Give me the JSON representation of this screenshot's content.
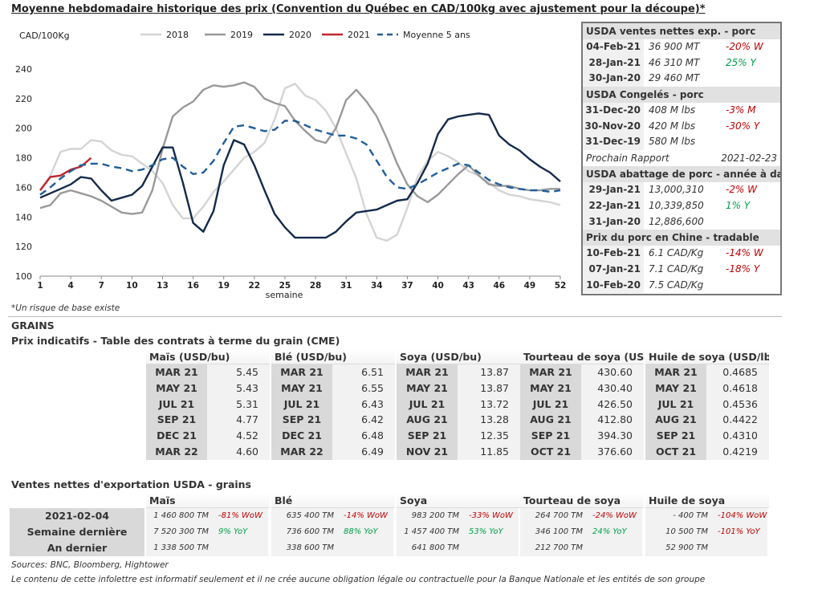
{
  "title": "Moyenne hebdomadaire historique des prix (Convention du Québec en CAD/100kg avec ajustement pour la découpe)*",
  "chart_data": {
    "type": "line",
    "ylabel": "CAD/100Kg",
    "xlabel": "semaine",
    "ylim": [
      100,
      240
    ],
    "xlim": [
      1,
      52
    ],
    "x_ticks": [
      1,
      4,
      7,
      10,
      13,
      16,
      19,
      22,
      25,
      28,
      31,
      34,
      37,
      40,
      43,
      46,
      49,
      52
    ],
    "y_ticks": [
      100,
      120,
      140,
      160,
      180,
      200,
      220,
      240
    ],
    "legend_position": "top",
    "series": [
      {
        "name": "2018",
        "color": "#d4d4d4",
        "dash": false,
        "values": [
          158,
          168,
          184,
          186,
          186,
          192,
          191,
          185,
          182,
          181,
          176,
          171,
          163,
          148,
          139,
          139,
          147,
          157,
          164,
          172,
          180,
          184,
          190,
          206,
          227,
          230,
          222,
          219,
          212,
          200,
          183,
          166,
          142,
          126,
          124,
          128,
          146,
          167,
          178,
          184,
          181,
          177,
          171,
          168,
          163,
          158,
          155,
          154,
          152,
          151,
          150,
          148
        ]
      },
      {
        "name": "2019",
        "color": "#999999",
        "dash": false,
        "values": [
          146,
          148,
          156,
          158,
          156,
          154,
          151,
          147,
          143,
          142,
          143,
          158,
          186,
          208,
          214,
          218,
          226,
          229,
          228,
          229,
          231,
          228,
          220,
          217,
          215,
          205,
          198,
          192,
          190,
          200,
          219,
          226,
          218,
          208,
          193,
          176,
          162,
          154,
          150,
          155,
          162,
          169,
          175,
          168,
          162,
          161,
          161,
          159,
          158,
          158,
          159,
          159
        ]
      },
      {
        "name": "2020",
        "color": "#14294b",
        "dash": false,
        "values": [
          153,
          156,
          159,
          162,
          167,
          166,
          158,
          151,
          153,
          155,
          161,
          174,
          187,
          187,
          163,
          136,
          130,
          144,
          175,
          192,
          189,
          175,
          158,
          142,
          133,
          126,
          126,
          126,
          126,
          130,
          137,
          143,
          144,
          145,
          148,
          151,
          152,
          163,
          176,
          196,
          206,
          208,
          209,
          210,
          209,
          195,
          189,
          185,
          179,
          174,
          170,
          164
        ]
      },
      {
        "name": "2021",
        "color": "#c0262d",
        "dash": false,
        "values": [
          158,
          167,
          168,
          172,
          174,
          180
        ]
      },
      {
        "name": "Moyenne 5 ans",
        "color": "#1f5d99",
        "dash": true,
        "values": [
          155,
          160,
          166,
          171,
          175,
          176,
          176,
          174,
          173,
          171,
          172,
          175,
          179,
          180,
          174,
          169,
          170,
          178,
          190,
          201,
          202,
          200,
          198,
          199,
          205,
          205,
          202,
          199,
          197,
          195,
          195,
          193,
          189,
          178,
          167,
          160,
          159,
          162,
          166,
          170,
          173,
          176,
          175,
          170,
          165,
          162,
          160,
          159,
          158,
          158,
          157,
          158
        ]
      }
    ]
  },
  "chart_note": "*Un risque de base existe",
  "usda": {
    "sections": [
      {
        "title": "USDA ventes nettes exp. - porc",
        "rows": [
          {
            "date": "04-Feb-21",
            "value": "36 900  MT",
            "change": "-20% W",
            "dir": "neg"
          },
          {
            "date": "28-Jan-21",
            "value": "46 310  MT",
            "change": "25% Y",
            "dir": "pos"
          },
          {
            "date": "30-Jan-20",
            "value": "29 460  MT",
            "change": "",
            "dir": ""
          }
        ]
      },
      {
        "title": "USDA Congelés - porc",
        "rows": [
          {
            "date": "31-Dec-20",
            "value": "408 M lbs",
            "change": "-3% M",
            "dir": "neg"
          },
          {
            "date": "30-Nov-20",
            "value": "420 M lbs",
            "change": "-30% Y",
            "dir": "neg"
          },
          {
            "date": "31-Dec-19",
            "value": "580 M lbs",
            "change": "",
            "dir": ""
          }
        ]
      },
      {
        "title": "USDA abattage de porc - année à date",
        "rows": [
          {
            "date": "29-Jan-21",
            "value": "13,000,310",
            "change": "-2% W",
            "dir": "neg"
          },
          {
            "date": "22-Jan-21",
            "value": "10,339,850",
            "change": "1% Y",
            "dir": "pos"
          },
          {
            "date": "31-Jan-20",
            "value": "12,886,600",
            "change": "",
            "dir": ""
          }
        ]
      },
      {
        "title": "Prix du porc en Chine - tradable",
        "rows": [
          {
            "date": "10-Feb-21",
            "value": "6.1 CAD/Kg",
            "change": "-14% W",
            "dir": "neg"
          },
          {
            "date": "07-Jan-21",
            "value": "7.1 CAD/Kg",
            "change": "-18% Y",
            "dir": "neg"
          },
          {
            "date": "10-Feb-20",
            "value": "7.5 CAD/Kg",
            "change": "",
            "dir": ""
          }
        ]
      }
    ],
    "next_report_label": "Prochain Rapport",
    "next_report_date": "2021-02-23"
  },
  "grains_label": "GRAINS",
  "futures_title": "Prix indicatifs - Table des contrats à terme du grain (CME)",
  "futures": [
    {
      "name": "Maïs (USD/bu)",
      "rows": [
        [
          "MAR 21",
          "5.45"
        ],
        [
          "MAY 21",
          "5.43"
        ],
        [
          "JUL 21",
          "5.31"
        ],
        [
          "SEP 21",
          "4.77"
        ],
        [
          "DEC 21",
          "4.52"
        ],
        [
          "MAR 22",
          "4.60"
        ]
      ]
    },
    {
      "name": "Blé (USD/bu)",
      "rows": [
        [
          "MAR 21",
          "6.51"
        ],
        [
          "MAY 21",
          "6.55"
        ],
        [
          "JUL 21",
          "6.43"
        ],
        [
          "SEP 21",
          "6.42"
        ],
        [
          "DEC 21",
          "6.48"
        ],
        [
          "MAR 22",
          "6.49"
        ]
      ]
    },
    {
      "name": "Soya (USD/bu)",
      "rows": [
        [
          "MAR 21",
          "13.87"
        ],
        [
          "MAY 21",
          "13.87"
        ],
        [
          "JUL 21",
          "13.72"
        ],
        [
          "AUG 21",
          "13.28"
        ],
        [
          "SEP 21",
          "12.35"
        ],
        [
          "NOV 21",
          "11.85"
        ]
      ]
    },
    {
      "name": "Tourteau de soya (USD/ST)",
      "rows": [
        [
          "MAR 21",
          "430.60"
        ],
        [
          "MAY 21",
          "430.40"
        ],
        [
          "JUL 21",
          "426.50"
        ],
        [
          "AUG 21",
          "412.80"
        ],
        [
          "SEP 21",
          "394.30"
        ],
        [
          "OCT 21",
          "376.60"
        ]
      ]
    },
    {
      "name": "Huile de soya (USD/lb)",
      "rows": [
        [
          "MAR 21",
          "0.4685"
        ],
        [
          "MAY 21",
          "0.4618"
        ],
        [
          "JUL 21",
          "0.4536"
        ],
        [
          "AUG 21",
          "0.4422"
        ],
        [
          "SEP 21",
          "0.4310"
        ],
        [
          "OCT 21",
          "0.4219"
        ]
      ]
    }
  ],
  "export_title": "Ventes nettes d'exportation USDA - grains",
  "export": {
    "row_labels": [
      "2021-02-04",
      "Semaine dernière",
      "An dernier"
    ],
    "columns": [
      {
        "name": "Maïs",
        "values": [
          "1 460 800 TM",
          "7 520 300 TM",
          "1 338 500 TM"
        ],
        "changes": [
          {
            "text": "-81% WoW",
            "dir": "neg"
          },
          {
            "text": "9% YoY",
            "dir": "pos"
          },
          {
            "text": "",
            "dir": ""
          }
        ]
      },
      {
        "name": "Blé",
        "values": [
          "635 400 TM",
          "736 600 TM",
          "338 600 TM"
        ],
        "changes": [
          {
            "text": "-14% WoW",
            "dir": "neg"
          },
          {
            "text": "88% YoY",
            "dir": "pos"
          },
          {
            "text": "",
            "dir": ""
          }
        ]
      },
      {
        "name": "Soya",
        "values": [
          "983 200 TM",
          "1 457 400 TM",
          "641 800 TM"
        ],
        "changes": [
          {
            "text": "-33% WoW",
            "dir": "neg"
          },
          {
            "text": "53% YoY",
            "dir": "pos"
          },
          {
            "text": "",
            "dir": ""
          }
        ]
      },
      {
        "name": "Tourteau de soya",
        "values": [
          "264 700 TM",
          "346 100 TM",
          "212 700 TM"
        ],
        "changes": [
          {
            "text": "-24% WoW",
            "dir": "neg"
          },
          {
            "text": "24% YoY",
            "dir": "pos"
          },
          {
            "text": "",
            "dir": ""
          }
        ]
      },
      {
        "name": "Huile de soya",
        "values": [
          "-  400 TM",
          "10 500 TM",
          "52 900 TM"
        ],
        "changes": [
          {
            "text": "-104% WoW",
            "dir": "neg"
          },
          {
            "text": "-101% YoY",
            "dir": "neg"
          },
          {
            "text": "",
            "dir": ""
          }
        ]
      }
    ]
  },
  "sources": "Sources: BNC, Bloomberg, Hightower",
  "disclaimer": "Le contenu de cette infolettre est informatif seulement et il ne crée aucune obligation légale ou contractuelle pour la Banque Nationale et les entités de son groupe"
}
